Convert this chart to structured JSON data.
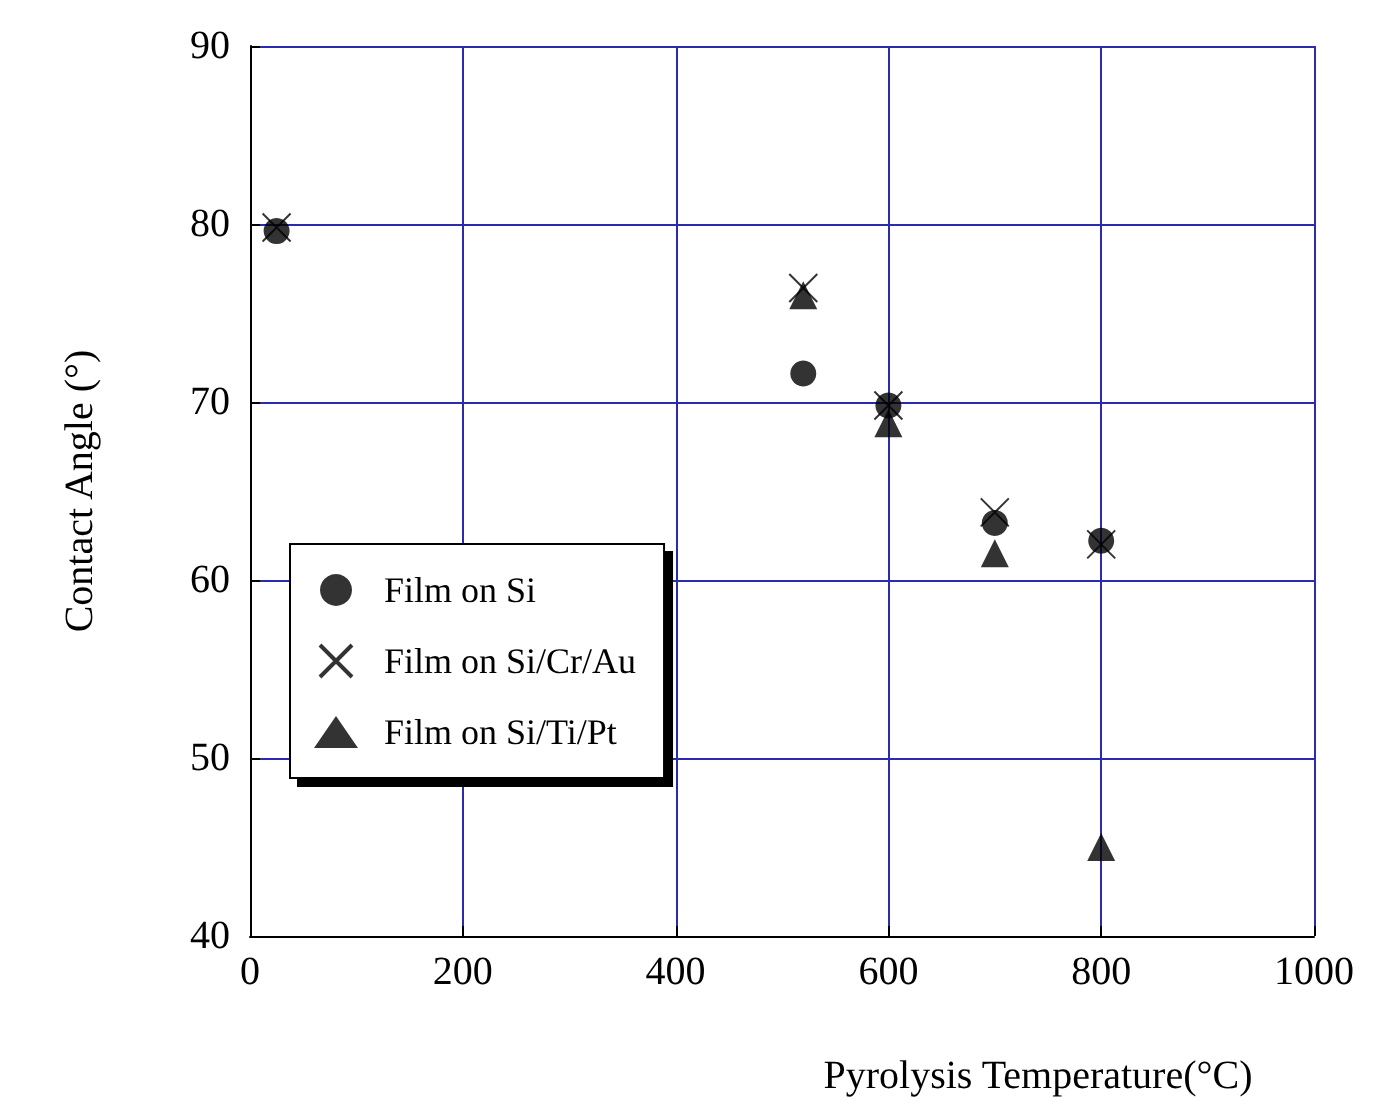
{
  "chart_data": {
    "type": "scatter",
    "xlabel": "Pyrolysis Temperature(°C)",
    "ylabel": "Contact Angle (°)",
    "xlim": [
      0,
      1000
    ],
    "xticks": [
      0,
      200,
      400,
      600,
      800,
      1000
    ],
    "ylim": [
      40,
      90
    ],
    "yticks": [
      40,
      50,
      60,
      70,
      80,
      90
    ],
    "grid": true,
    "legend": "bottom left",
    "series": [
      {
        "name": "Film on Si",
        "color": "#000000",
        "marker": "circle",
        "x": [
          25,
          520,
          600,
          700,
          800
        ],
        "values": [
          79.6,
          71.6,
          69.8,
          63.2,
          62.2
        ]
      },
      {
        "name": "Film on Si/Cr/Au",
        "color": "#000000",
        "marker": "cross",
        "x": [
          25,
          520,
          600,
          700,
          800
        ],
        "values": [
          79.8,
          76.4,
          69.8,
          63.8,
          62.0
        ]
      },
      {
        "name": "Film on Si/Ti/Pt",
        "color": "#000000",
        "marker": "triangle",
        "x": [
          520,
          600,
          700,
          800
        ],
        "values": [
          76.0,
          68.8,
          61.5,
          45.0
        ]
      }
    ]
  }
}
